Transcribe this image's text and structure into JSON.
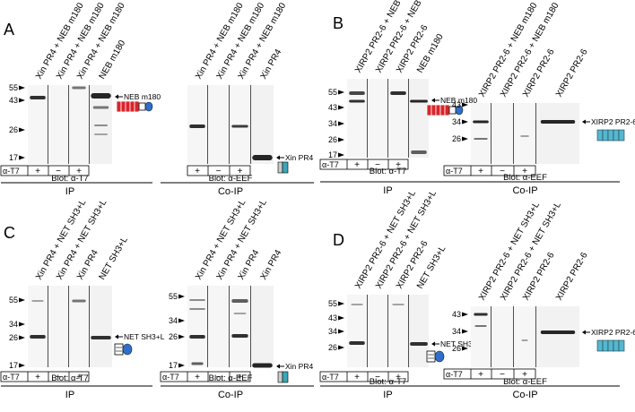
{
  "panels": [
    {
      "letter": "A",
      "groups": [
        {
          "lane_labels": [
            "Xin PR4 + NEB m180",
            "Xin PR4 + NEB m180",
            "Xin PR4 + NEB m180",
            "NEB m180"
          ],
          "markers": [
            "55",
            "43",
            "26",
            "17"
          ],
          "side_label": "NEB m180",
          "side_icon": "neb-icon",
          "row_label": "α-T7",
          "signs": [
            "+",
            "−",
            "+"
          ],
          "blot": "Blot: α-T7",
          "bottom": "IP"
        },
        {
          "lane_labels": [
            "Xin PR4 + NEB m180",
            "Xin PR4 + NEB m180",
            "Xin PR4 + NEB m180",
            "Xin PR4"
          ],
          "markers": [],
          "side_label": "Xin PR4",
          "side_icon": "xin-icon",
          "row_label": "",
          "signs": [
            "+",
            "−",
            "+"
          ],
          "blot": "Blot: α-EEF",
          "bottom": "Co-IP"
        }
      ]
    },
    {
      "letter": "B",
      "groups": [
        {
          "lane_labels": [
            "XIRP2 PR2-6 + NEB m180",
            "XIRP2 PR2-6 + NEB m180",
            "XIRP2 PR2-6",
            "NEB m180"
          ],
          "markers": [
            "55",
            "43",
            "34",
            "26",
            "17"
          ],
          "side_label": "NEB m180",
          "side_icon": "neb-icon",
          "row_label": "α-T7",
          "signs": [
            "+",
            "−",
            "+"
          ],
          "blot": "Blot: α-T7",
          "bottom": "IP"
        },
        {
          "lane_labels": [
            "XIRP2 PR2-6 + NEB m180",
            "XIRP2 PR2-6 + NEB m180",
            "XIRP2 PR2-6",
            "XIRP2 PR2-6"
          ],
          "markers": [
            "43",
            "34",
            "26"
          ],
          "side_label": "XIRP2 PR2-6",
          "side_icon": "xirp2-icon",
          "row_label": "α-T7",
          "signs": [
            "+",
            "−",
            "+"
          ],
          "blot": "Blot: α-EEF",
          "bottom": "Co-IP"
        }
      ]
    },
    {
      "letter": "C",
      "groups": [
        {
          "lane_labels": [
            "Xin PR4 + NET SH3+L",
            "Xin PR4 + NET SH3+L",
            "Xin PR4",
            "NET SH3+L"
          ],
          "markers": [
            "55",
            "34",
            "26",
            "17"
          ],
          "side_label": "NET SH3+L",
          "side_icon": "net-icon",
          "row_label": "α-T7",
          "signs": [
            "+",
            "−",
            "+"
          ],
          "blot": "Blot: α-T7",
          "bottom": "IP"
        },
        {
          "lane_labels": [
            "Xin PR4 + NET SH3+L",
            "Xin PR4 + NET SH3+L",
            "Xin PR4",
            "Xin PR4"
          ],
          "markers": [
            "55",
            "34",
            "26",
            "17"
          ],
          "side_label": "Xin PR4",
          "side_icon": "xin-icon",
          "row_label": "α-T7",
          "signs": [
            "+",
            "−",
            "+"
          ],
          "blot": "Blot: α-EEF",
          "bottom": "Co-IP"
        }
      ]
    },
    {
      "letter": "D",
      "groups": [
        {
          "lane_labels": [
            "XIRP2 PR2-6 + NET SH3+L",
            "XIRP2 PR2-6 + NET SH3+L",
            "XIRP2 PR2-6",
            "NET SH3+L"
          ],
          "markers": [
            "55",
            "43",
            "34",
            "26"
          ],
          "side_label": "NET SH3+L",
          "side_icon": "net-icon",
          "row_label": "α-T7",
          "signs": [
            "+",
            "−",
            "+"
          ],
          "blot": "Blot: α-T7",
          "bottom": "IP"
        },
        {
          "lane_labels": [
            "XIRP2 PR2-6 + NET SH3+L",
            "XIRP2 PR2-6 + NET SH3+L",
            "XIRP2 PR2-6",
            "XIRP2 PR2-6"
          ],
          "markers": [
            "43",
            "34",
            "26"
          ],
          "side_label": "XIRP2 PR2-6",
          "side_icon": "xirp2-icon",
          "row_label": "α-T7",
          "signs": [
            "+",
            "−",
            "+"
          ],
          "blot": "Blot: α-EEF",
          "bottom": "Co-IP"
        }
      ]
    }
  ],
  "colors": {
    "neb_red": "#d8262b",
    "net_blue": "#2f6fc9",
    "xin_teal": "#3aa6b8",
    "xirp2_teal": "#55b7cf",
    "band": "#1a1a1a"
  }
}
